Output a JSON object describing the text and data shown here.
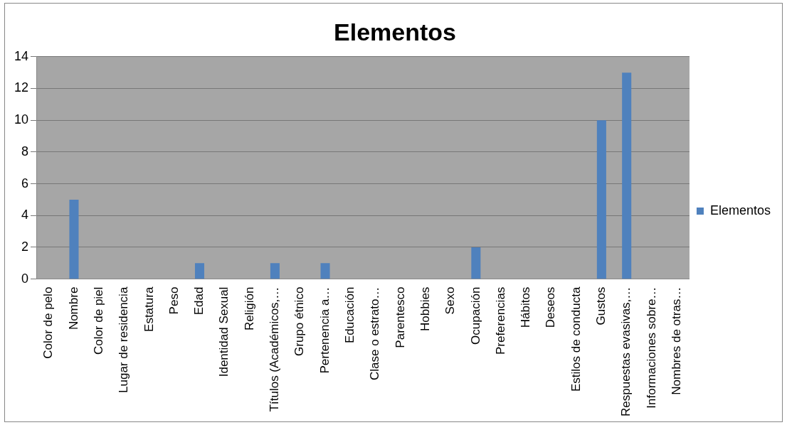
{
  "chart_data": {
    "type": "bar",
    "title": "Elementos",
    "categories": [
      "Color de pelo",
      "Nombre",
      "Color de piel",
      "Lugar de residencia",
      "Estatura",
      "Peso",
      "Edad",
      "Identidad Sexual",
      "Religión",
      "Títulos (Académicos,…",
      "Grupo étnico",
      "Pertenencia a…",
      "Educación",
      "Clase o estrato…",
      "Parentesco",
      "Hobbies",
      "Sexo",
      "Ocupación",
      "Preferencias",
      "Hábitos",
      "Deseos",
      "Estilos de conducta",
      "Gustos",
      "Respuestas evasivas,…",
      "Informaciones sobre…",
      "Nombres de otras…"
    ],
    "series": [
      {
        "name": "Elementos",
        "color": "#4f81bd",
        "values": [
          0,
          5,
          0,
          0,
          0,
          0,
          1,
          0,
          0,
          1,
          0,
          1,
          0,
          0,
          0,
          0,
          0,
          2,
          0,
          0,
          0,
          0,
          10,
          13,
          0,
          0
        ]
      }
    ],
    "ylim": [
      0,
      14
    ],
    "yticks": [
      0,
      2,
      4,
      6,
      8,
      10,
      12,
      14
    ],
    "grid": "y",
    "legend": "right"
  }
}
